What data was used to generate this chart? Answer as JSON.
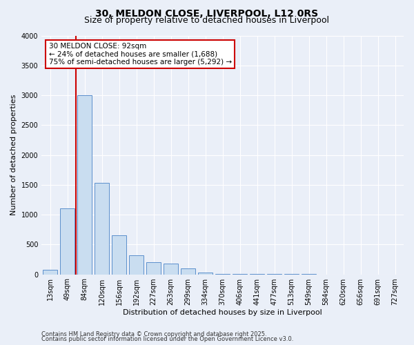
{
  "title1": "30, MELDON CLOSE, LIVERPOOL, L12 0RS",
  "title2": "Size of property relative to detached houses in Liverpool",
  "xlabel": "Distribution of detached houses by size in Liverpool",
  "ylabel": "Number of detached properties",
  "categories": [
    "13sqm",
    "49sqm",
    "84sqm",
    "120sqm",
    "156sqm",
    "192sqm",
    "227sqm",
    "263sqm",
    "299sqm",
    "334sqm",
    "370sqm",
    "406sqm",
    "441sqm",
    "477sqm",
    "513sqm",
    "549sqm",
    "584sqm",
    "620sqm",
    "656sqm",
    "691sqm",
    "727sqm"
  ],
  "values": [
    75,
    1100,
    3000,
    1530,
    650,
    320,
    200,
    175,
    100,
    35,
    10,
    5,
    3,
    2,
    1,
    1,
    0,
    0,
    0,
    0,
    0
  ],
  "bar_color": "#c9ddf0",
  "bar_edge_color": "#5b8fcc",
  "vline_color": "#cc0000",
  "vline_x_index": 2,
  "annotation_line1": "30 MELDON CLOSE: 92sqm",
  "annotation_line2": "← 24% of detached houses are smaller (1,688)",
  "annotation_line3": "75% of semi-detached houses are larger (5,292) →",
  "annotation_box_color": "#cc0000",
  "ylim": [
    0,
    4000
  ],
  "yticks": [
    0,
    500,
    1000,
    1500,
    2000,
    2500,
    3000,
    3500,
    4000
  ],
  "footer1": "Contains HM Land Registry data © Crown copyright and database right 2025.",
  "footer2": "Contains public sector information licensed under the Open Government Licence v3.0.",
  "bg_color": "#eaeff8",
  "plot_bg_color": "#eaeff8",
  "grid_color": "#ffffff",
  "title_fontsize": 10,
  "subtitle_fontsize": 9,
  "axis_label_fontsize": 8,
  "tick_fontsize": 7,
  "footer_fontsize": 6
}
